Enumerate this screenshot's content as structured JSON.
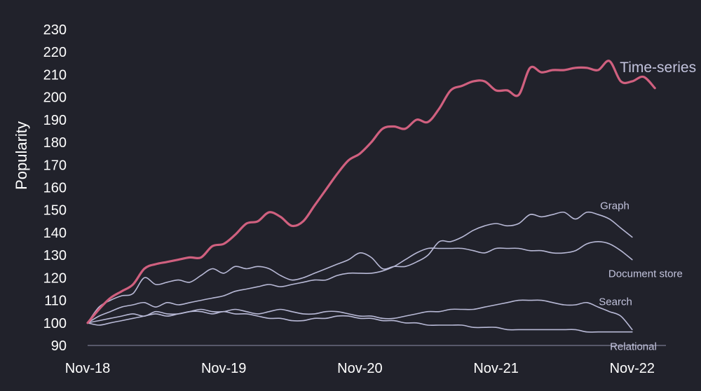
{
  "chart_data": {
    "type": "line",
    "ylabel": "Popularity",
    "ylim": [
      90,
      230
    ],
    "yticks": [
      90,
      100,
      110,
      120,
      130,
      140,
      150,
      160,
      170,
      180,
      190,
      200,
      210,
      220,
      230
    ],
    "xticks": [
      "Nov-18",
      "Nov-19",
      "Nov-20",
      "Nov-21",
      "Nov-22"
    ],
    "x_range": [
      0,
      49
    ],
    "xtick_positions": [
      0,
      12,
      24,
      36,
      48
    ],
    "grid": false,
    "series": [
      {
        "name": "Time-series",
        "color": "#d0607f",
        "emphasis": true,
        "values": [
          100,
          106,
          111,
          114,
          117,
          124,
          126,
          127,
          128,
          129,
          129,
          134,
          135,
          139,
          144,
          145,
          149,
          147,
          143,
          145,
          152,
          159,
          166,
          172,
          175,
          180,
          186,
          187,
          186,
          190,
          189,
          195,
          203,
          205,
          207,
          207,
          203,
          203,
          201,
          213,
          211,
          212,
          212,
          213,
          213,
          212,
          216,
          207,
          207,
          209,
          204
        ]
      },
      {
        "name": "Graph",
        "color": "#b8b9d6",
        "values": [
          100,
          107,
          110,
          112,
          113,
          120,
          117,
          118,
          119,
          118,
          121,
          124,
          122,
          125,
          124,
          125,
          124,
          121,
          119,
          120,
          122,
          124,
          126,
          128,
          131,
          129,
          124,
          125,
          125,
          127,
          130,
          136,
          136,
          138,
          141,
          143,
          144,
          143,
          144,
          148,
          147,
          148,
          149,
          146,
          149,
          148,
          146,
          142,
          138
        ]
      },
      {
        "name": "Document store",
        "color": "#b8b9d6",
        "values": [
          100,
          103,
          105,
          107,
          108,
          109,
          107,
          109,
          108,
          109,
          110,
          111,
          112,
          114,
          115,
          116,
          117,
          116,
          117,
          118,
          119,
          119,
          121,
          122,
          122,
          122,
          123,
          125,
          128,
          131,
          133,
          133,
          133,
          133,
          132,
          131,
          133,
          133,
          133,
          132,
          132,
          131,
          131,
          132,
          135,
          136,
          135,
          132,
          128
        ]
      },
      {
        "name": "Search",
        "color": "#b8b9d6",
        "values": [
          100,
          99,
          100,
          101,
          102,
          103,
          104,
          103,
          104,
          105,
          106,
          105,
          105,
          106,
          105,
          104,
          105,
          106,
          105,
          104,
          104,
          105,
          105,
          104,
          103,
          103,
          102,
          102,
          103,
          104,
          105,
          105,
          106,
          106,
          106,
          107,
          108,
          109,
          110,
          110,
          110,
          109,
          108,
          108,
          109,
          107,
          105,
          103,
          97
        ]
      },
      {
        "name": "Relational",
        "color": "#b8b9d6",
        "values": [
          100,
          101,
          102,
          103,
          104,
          103,
          105,
          104,
          104,
          105,
          105,
          104,
          105,
          104,
          104,
          103,
          102,
          102,
          101,
          101,
          102,
          102,
          103,
          103,
          102,
          102,
          101,
          101,
          100,
          100,
          99,
          99,
          99,
          99,
          98,
          98,
          98,
          97,
          97,
          97,
          97,
          97,
          97,
          97,
          96,
          96,
          96,
          96,
          96
        ]
      }
    ]
  }
}
